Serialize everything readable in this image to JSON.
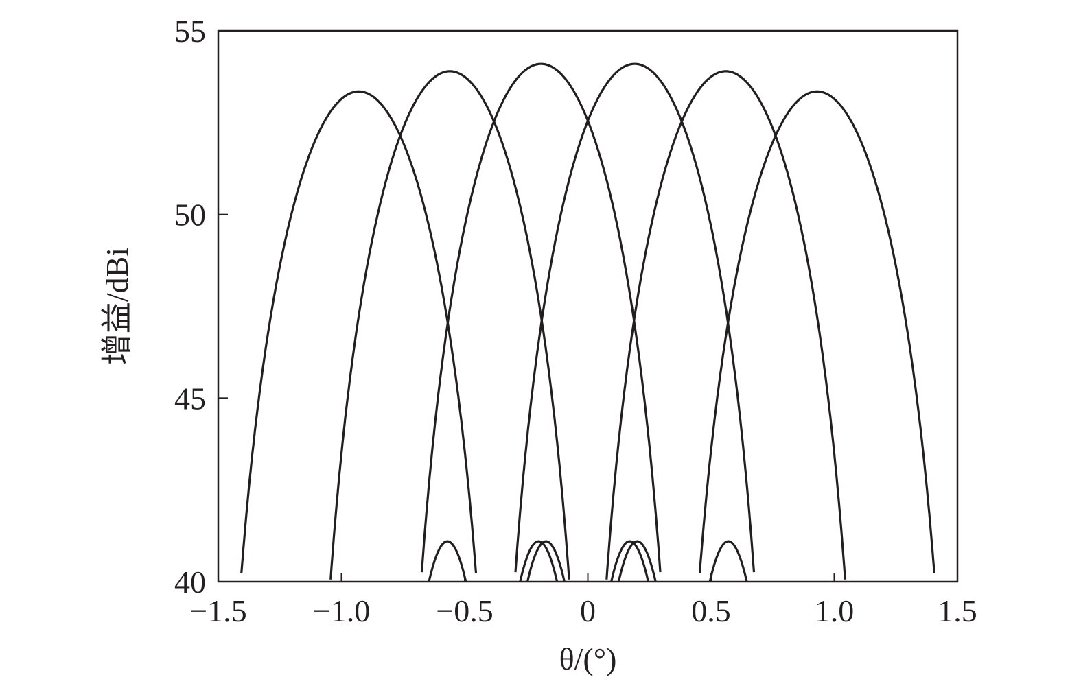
{
  "chart_data": {
    "type": "line",
    "title": "",
    "xlabel": "θ/(°)",
    "ylabel": "增益/dBi",
    "xlim": [
      -1.5,
      1.5
    ],
    "ylim": [
      40,
      55
    ],
    "xticks": [
      -1.5,
      -1.0,
      -0.5,
      0,
      0.5,
      1.0,
      1.5
    ],
    "xtick_labels": [
      "−1.5",
      "−1.0",
      "−0.5",
      "0",
      "0.5",
      "1.0",
      "1.5"
    ],
    "yticks": [
      40,
      45,
      50,
      55
    ],
    "ytick_labels": [
      "40",
      "45",
      "50",
      "55"
    ],
    "grid": false,
    "legend": "none",
    "line_color": "#231f20",
    "series": [
      {
        "peak_x": -0.93,
        "peak_y": 53.35,
        "crossover_points": [
          [
            -1.45,
            40.0
          ],
          [
            -1.2,
            48.9
          ],
          [
            -0.93,
            53.35
          ],
          [
            -0.77,
            50.8
          ],
          [
            -0.62,
            40.0
          ],
          [
            -0.38,
            41.1
          ],
          [
            -0.33,
            40.0
          ]
        ]
      },
      {
        "peak_x": -0.56,
        "peak_y": 53.9,
        "crossover_points": [
          [
            -1.0,
            40.0
          ],
          [
            -0.77,
            50.8
          ],
          [
            -0.56,
            53.9
          ],
          [
            -0.38,
            50.9
          ],
          [
            -0.24,
            40.0
          ],
          [
            0.03,
            41.1
          ],
          [
            0.08,
            40.0
          ]
        ]
      },
      {
        "peak_x": -0.19,
        "peak_y": 54.1,
        "crossover_points": [
          [
            -0.69,
            40.0
          ],
          [
            -0.38,
            50.9
          ],
          [
            -0.19,
            54.1
          ],
          [
            0.0,
            50.85
          ],
          [
            0.15,
            40.0
          ],
          [
            0.38,
            41.1
          ],
          [
            0.44,
            40.0
          ]
        ]
      },
      {
        "peak_x": 0.19,
        "peak_y": 54.1,
        "crossover_points": [
          [
            -0.44,
            40.0
          ],
          [
            -0.38,
            41.1
          ],
          [
            -0.15,
            40.0
          ],
          [
            0.0,
            50.85
          ],
          [
            0.19,
            54.1
          ],
          [
            0.38,
            50.9
          ],
          [
            0.69,
            40.0
          ]
        ]
      },
      {
        "peak_x": 0.56,
        "peak_y": 53.9,
        "crossover_points": [
          [
            -0.08,
            40.0
          ],
          [
            -0.03,
            41.1
          ],
          [
            0.24,
            40.0
          ],
          [
            0.38,
            50.9
          ],
          [
            0.56,
            53.9
          ],
          [
            0.77,
            50.8
          ],
          [
            1.0,
            40.0
          ]
        ]
      },
      {
        "peak_x": 0.93,
        "peak_y": 53.35,
        "crossover_points": [
          [
            0.33,
            40.0
          ],
          [
            0.38,
            41.1
          ],
          [
            0.62,
            40.0
          ],
          [
            0.77,
            50.8
          ],
          [
            0.93,
            53.35
          ],
          [
            1.2,
            48.9
          ],
          [
            1.45,
            40.0
          ]
        ]
      }
    ]
  }
}
